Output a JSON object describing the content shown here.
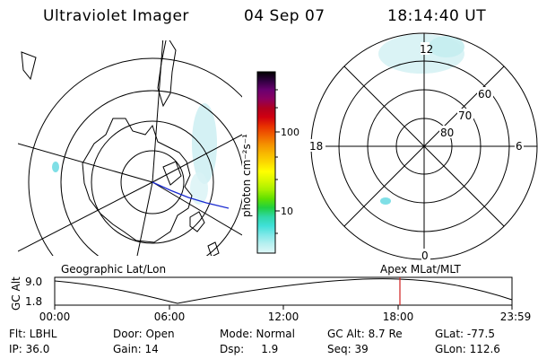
{
  "header": {
    "instrument": "Ultraviolet Imager",
    "date": "04 Sep 07",
    "time": "18:14:40 UT"
  },
  "colorbar": {
    "unit_label": "photon cm⁻²s⁻¹",
    "ticks": [
      "100",
      "10"
    ],
    "colors": [
      "#000000",
      "#300040",
      "#6a0070",
      "#8c0060",
      "#b00020",
      "#d00010",
      "#e83000",
      "#f06000",
      "#f49000",
      "#f8b800",
      "#fcd800",
      "#ffff00",
      "#d8f800",
      "#a8f000",
      "#60e000",
      "#20d040",
      "#30d8a8",
      "#40e0d8",
      "#80e8e8",
      "#b8f0f0",
      "#e0f8f8"
    ]
  },
  "geo_map": {
    "label": "Geographic Lat/Lon"
  },
  "mag_dial": {
    "label": "Apex MLat/MLT",
    "mlt_labels": {
      "top": "12",
      "left": "18",
      "right": "6",
      "bottom": "0"
    },
    "lat_labels": [
      "60",
      "70",
      "80"
    ]
  },
  "orbit_plot": {
    "y_axis_label": "GC Alt",
    "y_ticks": [
      "9.0",
      "1.8"
    ],
    "x_ticks": [
      "00:00",
      "06:00",
      "12:00",
      "18:00",
      "23:59"
    ],
    "marker_color": "#d02020"
  },
  "footer": {
    "filter": "Flt: LBHL",
    "door": "Door: Open",
    "mode": "Mode: Normal",
    "gc_alt": "GC Alt: 8.7 Re",
    "glat": "GLat: -77.5",
    "ip": "IP: 36.0",
    "gain": "Gain: 14",
    "dsp": "Dsp:     1.9",
    "seq": "Seq: 39",
    "glon": "GLon: 112.6"
  }
}
